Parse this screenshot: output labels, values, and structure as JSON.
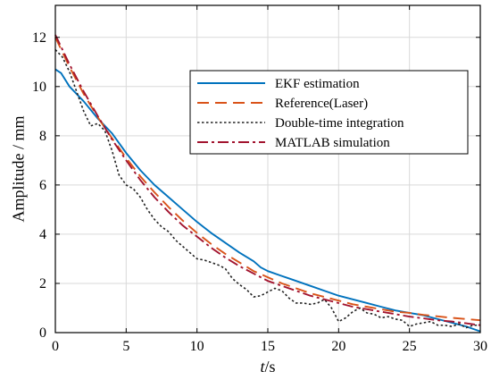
{
  "chart_data": {
    "type": "line",
    "xlabel": "t/s",
    "xlabel_italic": "t",
    "xlabel_rest": "/s",
    "ylabel": "Amplitude / mm",
    "xlim": [
      0,
      30
    ],
    "ylim": [
      0,
      13.3
    ],
    "xticks": [
      0,
      5,
      10,
      15,
      20,
      25,
      30
    ],
    "yticks": [
      0,
      2,
      4,
      6,
      8,
      10,
      12
    ],
    "grid": true,
    "legend_position": "top-right",
    "series": [
      {
        "name": "EKF estimation",
        "color": "#0072BD",
        "dash": "solid",
        "x": [
          0,
          0.4,
          1,
          2,
          3,
          4,
          5,
          6,
          7,
          8,
          9,
          10,
          11,
          12,
          13,
          14,
          14.5,
          15,
          16,
          16.5,
          17,
          18,
          19,
          20,
          21,
          22,
          23,
          24,
          25,
          26,
          27,
          28,
          29,
          30
        ],
        "y": [
          10.7,
          10.55,
          10.0,
          9.4,
          8.7,
          8.1,
          7.3,
          6.6,
          6.0,
          5.5,
          5.0,
          4.5,
          4.05,
          3.65,
          3.25,
          2.9,
          2.65,
          2.5,
          2.3,
          2.2,
          2.1,
          1.9,
          1.7,
          1.5,
          1.35,
          1.2,
          1.05,
          0.9,
          0.8,
          0.7,
          0.55,
          0.4,
          0.25,
          0.05
        ]
      },
      {
        "name": "Reference(Laser)",
        "color": "#D95319",
        "dash": "long",
        "x": [
          0,
          1,
          2,
          3,
          4,
          5,
          6,
          7,
          8,
          9,
          10,
          11,
          12,
          13,
          14,
          15,
          16,
          17,
          18,
          19,
          20,
          21,
          22,
          23,
          24,
          25,
          26,
          27,
          28,
          29,
          30
        ],
        "y": [
          12.0,
          10.8,
          9.7,
          8.75,
          7.9,
          7.1,
          6.35,
          5.7,
          5.1,
          4.55,
          4.05,
          3.6,
          3.2,
          2.85,
          2.5,
          2.25,
          2.0,
          1.8,
          1.6,
          1.45,
          1.3,
          1.15,
          1.05,
          0.95,
          0.85,
          0.8,
          0.72,
          0.66,
          0.6,
          0.55,
          0.5
        ]
      },
      {
        "name": "Double-time integration",
        "color": "#222222",
        "dash": "dotted",
        "x": [
          0,
          0.5,
          1,
          1.5,
          2,
          2.5,
          3,
          3.5,
          4,
          4.5,
          5,
          5.5,
          6,
          6.5,
          7,
          7.5,
          8,
          8.5,
          9,
          9.5,
          10,
          10.5,
          11,
          11.5,
          12,
          12.5,
          13,
          13.5,
          14,
          14.5,
          15,
          15.5,
          16,
          16.5,
          17,
          17.5,
          18,
          18.5,
          19,
          19.5,
          20,
          20.5,
          21,
          21.5,
          22,
          22.5,
          23,
          23.5,
          24,
          24.5,
          25,
          25.5,
          26,
          26.5,
          27,
          27.5,
          28,
          28.5,
          29,
          29.5,
          30
        ],
        "y": [
          11.5,
          11.2,
          10.6,
          9.8,
          9.0,
          8.4,
          8.5,
          8.2,
          7.4,
          6.4,
          6.0,
          5.85,
          5.5,
          5.0,
          4.6,
          4.3,
          4.1,
          3.75,
          3.5,
          3.25,
          3.0,
          2.95,
          2.85,
          2.75,
          2.6,
          2.2,
          1.95,
          1.75,
          1.45,
          1.5,
          1.65,
          1.8,
          1.7,
          1.4,
          1.2,
          1.2,
          1.15,
          1.2,
          1.35,
          1.0,
          0.45,
          0.6,
          0.85,
          1.0,
          0.8,
          0.75,
          0.6,
          0.65,
          0.55,
          0.5,
          0.25,
          0.35,
          0.4,
          0.45,
          0.3,
          0.3,
          0.25,
          0.35,
          0.2,
          0.3,
          0.3
        ]
      },
      {
        "name": "MATLAB simulation",
        "color": "#A2142F",
        "dash": "dashdot",
        "x": [
          0,
          1,
          2,
          3,
          4,
          5,
          6,
          7,
          8,
          9,
          10,
          11,
          12,
          13,
          14,
          15,
          16,
          17,
          18,
          19,
          20,
          21,
          22,
          23,
          24,
          25,
          26,
          27,
          28,
          29,
          30
        ],
        "y": [
          12.1,
          10.9,
          9.8,
          8.8,
          7.85,
          7.0,
          6.2,
          5.5,
          4.9,
          4.35,
          3.9,
          3.45,
          3.05,
          2.7,
          2.4,
          2.1,
          1.9,
          1.7,
          1.5,
          1.35,
          1.2,
          1.05,
          0.95,
          0.85,
          0.75,
          0.65,
          0.58,
          0.5,
          0.45,
          0.38,
          0.3
        ]
      }
    ]
  }
}
